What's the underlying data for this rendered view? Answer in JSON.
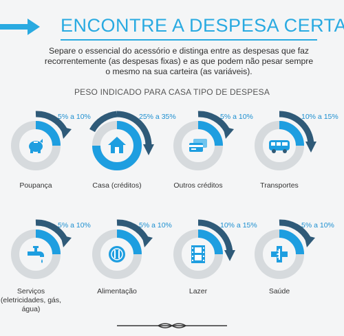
{
  "header": {
    "title": "ENCONTRE A DESPESA CERTA",
    "intro": "Separe o essencial do acessório e distinga entre as despesas que faz recorrentemente (as despesas fixas) e as que podem não pesar sempre o mesmo na sua carteira (as variáveis).",
    "subtitle": "PESO INDICADO PARA CASA TIPO DE DESPESA"
  },
  "colors": {
    "accent": "#29aae1",
    "ring_blue": "#1e9ee0",
    "ring_dark": "#2f5a78",
    "ring_gray": "#d6dadd",
    "icon_blue": "#1e9ee0"
  },
  "items": [
    {
      "label": "Poupança",
      "percent": "5% a 10%",
      "icon": "piggy-bank-icon"
    },
    {
      "label": "Casa (créditos)",
      "percent": "25% a 35%",
      "icon": "house-icon"
    },
    {
      "label": "Outros créditos",
      "percent": "5% a 10%",
      "icon": "credit-cards-icon"
    },
    {
      "label": "Transportes",
      "percent": "10% a 15%",
      "icon": "bus-icon"
    },
    {
      "label": "Serviços (eletricidades, gás, água)",
      "percent": "5% a 10%",
      "icon": "faucet-icon"
    },
    {
      "label": "Alimentação",
      "percent": "5% a 10%",
      "icon": "plate-cutlery-icon"
    },
    {
      "label": "Lazer",
      "percent": "10% a 15%",
      "icon": "film-icon"
    },
    {
      "label": "Saúde",
      "percent": "5% a 10%",
      "icon": "medical-icon"
    }
  ]
}
